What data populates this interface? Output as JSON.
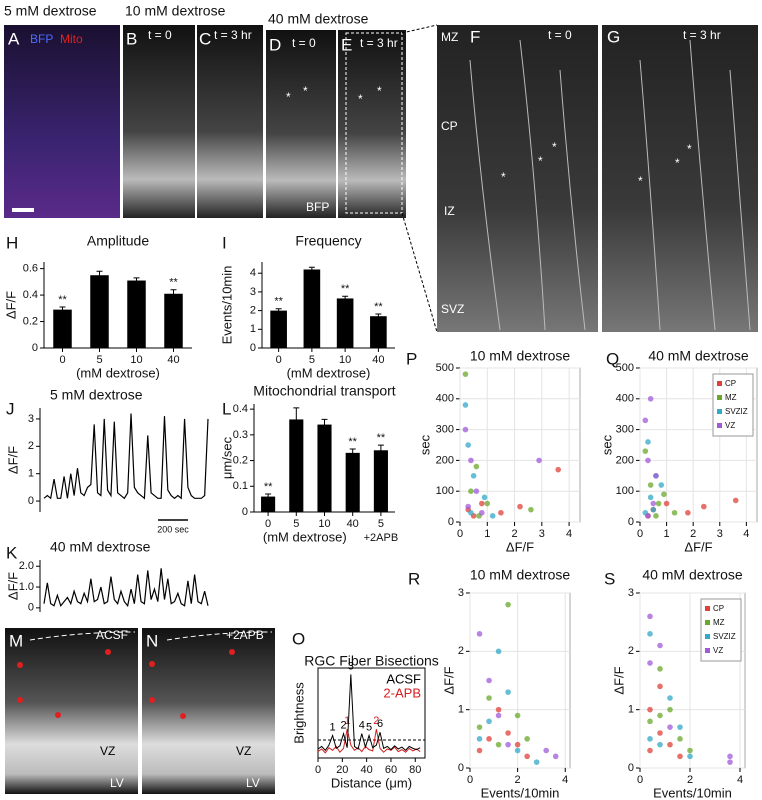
{
  "images": {
    "A": {
      "letter": "A",
      "title": "5 mM dextrose",
      "blue": "BFP",
      "red": "Mito"
    },
    "B": {
      "letter": "B",
      "time": "t = 0",
      "title": "10 mM dextrose"
    },
    "C": {
      "letter": "C",
      "time": "t = 3 hr"
    },
    "D": {
      "letter": "D",
      "time": "t = 0",
      "title": "40 mM dextrose",
      "bottom": "BFP",
      "star": "*"
    },
    "E": {
      "letter": "E",
      "time": "t = 3 hr",
      "star": "*"
    },
    "F": {
      "letter": "F",
      "time": "t = 0",
      "star": "*",
      "regions": [
        "MZ",
        "CP",
        "IZ",
        "SVZ"
      ]
    },
    "G": {
      "letter": "G",
      "time": "t = 3 hr",
      "star": "*"
    },
    "M": {
      "letter": "M",
      "condition": "ACSF",
      "zone": "VZ",
      "ventricle": "LV"
    },
    "N": {
      "letter": "N",
      "condition": "+2APB",
      "zone": "VZ",
      "ventricle": "LV"
    }
  },
  "chart_data": [
    {
      "type": "bar",
      "panel": "H",
      "title": "Amplitude",
      "ylabel": "ΔF/F",
      "xlabel": "(mM dextrose)",
      "categories": [
        "0",
        "5",
        "10",
        "40"
      ],
      "values": [
        0.29,
        0.55,
        0.51,
        0.41
      ],
      "errors": [
        0.02,
        0.03,
        0.02,
        0.03
      ],
      "annotations": [
        "**",
        null,
        null,
        "**"
      ],
      "color": "#000000",
      "ylim": [
        0,
        0.65
      ],
      "yticks": [
        0,
        0.2,
        0.4,
        0.6
      ]
    },
    {
      "type": "bar",
      "panel": "I",
      "title": "Frequency",
      "ylabel": "Events/10min",
      "xlabel": "(mM dextrose)",
      "categories": [
        "0",
        "5",
        "10",
        "40"
      ],
      "values": [
        2.0,
        4.2,
        2.65,
        1.7
      ],
      "errors": [
        0.1,
        0.12,
        0.12,
        0.12
      ],
      "annotations": [
        "**",
        null,
        "**",
        "**"
      ],
      "color": "#000000",
      "ylim": [
        0,
        4.6
      ],
      "yticks": [
        0,
        1,
        2,
        3,
        4
      ]
    },
    {
      "type": "line",
      "panel": "J",
      "title": "5 mM dextrose",
      "ylabel": "ΔF/F",
      "scalebar": "200 sec",
      "color": "#000000",
      "values": [
        0.1,
        0.2,
        0.1,
        0.8,
        0.1,
        0.1,
        0.9,
        0.1,
        1.0,
        0.2,
        1.2,
        0.3,
        0.2,
        0.5,
        0.6,
        2.8,
        0.3,
        0.2,
        3.0,
        0.4,
        0.2,
        2.9,
        0.3,
        0.2,
        0.1,
        0.3,
        3.2,
        0.5,
        0.3,
        0.2,
        0.1,
        2.4,
        0.3,
        0.2,
        0.1,
        0.1,
        3.1,
        0.4,
        0.2,
        0.1,
        0.2,
        0.1,
        3.0,
        0.5,
        0.2,
        0.1,
        0.1,
        0.1,
        0.2,
        3.0
      ],
      "ylim": [
        -0.4,
        3.4
      ],
      "yticks": [
        0,
        1,
        2,
        3
      ]
    },
    {
      "type": "line",
      "panel": "K",
      "title": "40 mM dextrose",
      "ylabel": "ΔF/F",
      "color": "#000000",
      "values": [
        0.2,
        1.2,
        0.2,
        0.1,
        0.6,
        0.1,
        0.3,
        0.5,
        0.2,
        0.8,
        0.3,
        0.2,
        0.7,
        0.3,
        1.4,
        0.3,
        0.4,
        1.0,
        0.2,
        0.3,
        1.5,
        0.4,
        0.2,
        0.8,
        0.3,
        0.1,
        0.9,
        0.2,
        1.6,
        0.3,
        0.2,
        1.8,
        0.4,
        0.9,
        0.3,
        1.9,
        0.4,
        1.4,
        0.2,
        0.3,
        0.7,
        0.2,
        0.1,
        1.3,
        0.2,
        1.6,
        0.3,
        0.2,
        0.8,
        0.1
      ],
      "ylim": [
        -0.2,
        2.3
      ],
      "yticks": [
        0,
        {
          "value": 1,
          "label": "1.0"
        },
        {
          "value": 2,
          "label": "2.0"
        }
      ]
    },
    {
      "type": "bar",
      "panel": "L",
      "title": "Mitochondrial transport",
      "ylabel": "μm/sec",
      "xlabel": "(mM dextrose)",
      "categories": [
        "0",
        "5",
        "10",
        "40",
        "5"
      ],
      "category_notes": [
        null,
        null,
        null,
        null,
        "+2APB"
      ],
      "values": [
        0.06,
        0.36,
        0.34,
        0.23,
        0.24
      ],
      "errors": [
        0.01,
        0.045,
        0.02,
        0.015,
        0.02
      ],
      "annotations": [
        "**",
        null,
        null,
        "**",
        "**"
      ],
      "color": "#000000",
      "ylim": [
        0,
        0.42
      ],
      "yticks": [
        0,
        0.1,
        0.2,
        0.3,
        0.4
      ]
    },
    {
      "type": "line",
      "panel": "O",
      "title": "RGC Fiber Bisections",
      "ylabel": "Brightness",
      "xlabel": "Distance (μm)",
      "x": [
        0,
        3,
        6,
        9,
        12,
        15,
        18,
        21,
        24,
        27,
        30,
        33,
        36,
        39,
        42,
        45,
        48,
        51,
        54,
        57,
        60,
        63,
        66,
        69,
        72,
        75,
        78,
        81,
        84
      ],
      "series": [
        {
          "name": "ACSF",
          "color": "#000000",
          "values": [
            14,
            18,
            12,
            20,
            35,
            15,
            19,
            38,
            16,
            130,
            18,
            14,
            38,
            17,
            35,
            16,
            20,
            40,
            15,
            18,
            13,
            19,
            14,
            17,
            12,
            18,
            15,
            13,
            16
          ],
          "value_labels": [
            null,
            null,
            null,
            null,
            "1",
            null,
            null,
            "2",
            null,
            "3",
            null,
            null,
            "4",
            null,
            "5",
            null,
            null,
            "6",
            null,
            null,
            null,
            null,
            null,
            null,
            null,
            null,
            null,
            null,
            null
          ]
        },
        {
          "name": "2-APB",
          "color": "#d42020",
          "values": [
            10,
            14,
            8,
            16,
            12,
            18,
            9,
            15,
            45,
            20,
            12,
            16,
            10,
            18,
            13,
            11,
            45,
            15,
            9,
            14,
            12,
            17,
            10,
            13,
            9,
            15,
            11,
            14,
            10
          ],
          "value_labels": [
            null,
            null,
            null,
            null,
            null,
            null,
            null,
            null,
            "1",
            null,
            null,
            null,
            null,
            null,
            null,
            null,
            "2",
            null,
            null,
            null,
            null,
            null,
            null,
            null,
            null,
            null,
            null,
            null,
            null
          ]
        }
      ],
      "threshold": 28,
      "xlim": [
        0,
        88
      ],
      "ylim": [
        0,
        140
      ],
      "xticks": [
        0,
        20,
        40,
        60,
        80
      ]
    },
    {
      "type": "scatter",
      "panel": "P",
      "title": "10 mM dextrose",
      "xlabel": "ΔF/F",
      "ylabel": "sec",
      "legend": false,
      "grid": true,
      "series": [
        {
          "name": "CP",
          "color": "#e0403a",
          "x": [
            0.3,
            0.8,
            1.5,
            2.2,
            3.6,
            0.5
          ],
          "values": [
            40,
            60,
            30,
            50,
            170,
            20
          ]
        },
        {
          "name": "MZ",
          "color": "#6aa82c",
          "x": [
            0.4,
            0.6,
            1.0,
            2.6,
            0.2,
            0.7
          ],
          "values": [
            100,
            180,
            60,
            40,
            480,
            20
          ]
        },
        {
          "name": "SVZIZ",
          "color": "#33a8c8",
          "x": [
            0.3,
            0.5,
            0.9,
            0.4,
            0.2,
            1.2
          ],
          "values": [
            250,
            150,
            80,
            30,
            380,
            20
          ]
        },
        {
          "name": "VZ",
          "color": "#a05ad8",
          "x": [
            0.2,
            0.4,
            0.6,
            2.9,
            0.3,
            0.8
          ],
          "values": [
            300,
            200,
            100,
            200,
            50,
            30
          ]
        }
      ],
      "xlim": [
        0,
        4.4
      ],
      "ylim": [
        0,
        500
      ],
      "xticks": [
        0,
        1,
        2,
        3,
        4
      ],
      "yticks": [
        0,
        100,
        200,
        300,
        400,
        500
      ]
    },
    {
      "type": "scatter",
      "panel": "Q",
      "title": "40 mM dextrose",
      "xlabel": "ΔF/F",
      "ylabel": "sec",
      "legend": true,
      "grid": true,
      "series": [
        {
          "name": "CP",
          "color": "#e0403a",
          "x": [
            0.5,
            1.8,
            2.4,
            3.6,
            0.3,
            1.0
          ],
          "values": [
            40,
            30,
            50,
            70,
            20,
            60
          ]
        },
        {
          "name": "MZ",
          "color": "#6aa82c",
          "x": [
            0.4,
            0.7,
            0.2,
            1.3,
            0.6,
            0.9
          ],
          "values": [
            120,
            60,
            230,
            30,
            20,
            90
          ]
        },
        {
          "name": "SVZIZ",
          "color": "#33a8c8",
          "x": [
            0.3,
            0.6,
            0.8,
            0.4,
            0.5,
            0.2
          ],
          "values": [
            260,
            150,
            120,
            80,
            40,
            30
          ]
        },
        {
          "name": "VZ",
          "color": "#a05ad8",
          "x": [
            0.4,
            0.2,
            0.3,
            0.6,
            0.5,
            0.3
          ],
          "values": [
            400,
            330,
            200,
            150,
            60,
            20
          ]
        }
      ],
      "xlim": [
        0,
        4.4
      ],
      "ylim": [
        0,
        500
      ],
      "xticks": [
        0,
        1,
        2,
        3,
        4
      ],
      "yticks": [
        0,
        100,
        200,
        300,
        400,
        500
      ]
    },
    {
      "type": "scatter",
      "panel": "R",
      "title": "10 mM dextrose",
      "xlabel": "Events/10min",
      "ylabel": "ΔF/F",
      "legend": false,
      "grid": true,
      "series": [
        {
          "name": "CP",
          "color": "#e0403a",
          "x": [
            0.4,
            0.8,
            1.2,
            1.6,
            2.0,
            2.4
          ],
          "values": [
            0.3,
            0.5,
            1.0,
            0.6,
            0.4,
            0.2
          ]
        },
        {
          "name": "MZ",
          "color": "#6aa82c",
          "x": [
            0.4,
            0.8,
            1.2,
            1.6,
            2.0,
            2.4
          ],
          "values": [
            0.7,
            1.2,
            0.4,
            2.8,
            0.9,
            0.5
          ]
        },
        {
          "name": "SVZIZ",
          "color": "#33a8c8",
          "x": [
            0.4,
            0.8,
            1.2,
            1.6,
            2.0,
            2.8
          ],
          "values": [
            0.5,
            0.8,
            2.0,
            1.3,
            0.3,
            0.1
          ]
        },
        {
          "name": "VZ",
          "color": "#a05ad8",
          "x": [
            0.4,
            0.8,
            1.2,
            1.6,
            3.2,
            3.6
          ],
          "values": [
            2.3,
            1.5,
            0.9,
            0.4,
            0.3,
            0.2
          ]
        }
      ],
      "xlim": [
        0,
        4.2
      ],
      "ylim": [
        0,
        3
      ],
      "xticks": [
        0,
        2,
        4
      ],
      "yticks": [
        0,
        1,
        2,
        3
      ]
    },
    {
      "type": "scatter",
      "panel": "S",
      "title": "40 mM dextrose",
      "xlabel": "Events/10min",
      "ylabel": "ΔF/F",
      "legend": true,
      "grid": true,
      "series": [
        {
          "name": "CP",
          "color": "#e0403a",
          "x": [
            0.4,
            0.8,
            1.2,
            1.6,
            0.4,
            0.8
          ],
          "values": [
            0.3,
            0.6,
            0.4,
            0.2,
            1.0,
            1.4
          ]
        },
        {
          "name": "MZ",
          "color": "#6aa82c",
          "x": [
            0.4,
            0.8,
            1.2,
            1.6,
            2.0,
            0.8
          ],
          "values": [
            0.8,
            1.7,
            1.0,
            0.5,
            0.3,
            0.9
          ]
        },
        {
          "name": "SVZIZ",
          "color": "#33a8c8",
          "x": [
            0.4,
            0.8,
            1.2,
            1.6,
            0.4,
            2.0
          ],
          "values": [
            0.5,
            0.4,
            1.2,
            0.7,
            2.3,
            0.2
          ]
        },
        {
          "name": "VZ",
          "color": "#a05ad8",
          "x": [
            0.4,
            0.8,
            1.2,
            0.4,
            3.6,
            3.6
          ],
          "values": [
            2.6,
            2.1,
            0.7,
            1.8,
            0.1,
            0.2
          ]
        }
      ],
      "xlim": [
        0,
        4.2
      ],
      "ylim": [
        0,
        3
      ],
      "xticks": [
        0,
        2,
        4
      ],
      "yticks": [
        0,
        1,
        2,
        3
      ]
    }
  ]
}
